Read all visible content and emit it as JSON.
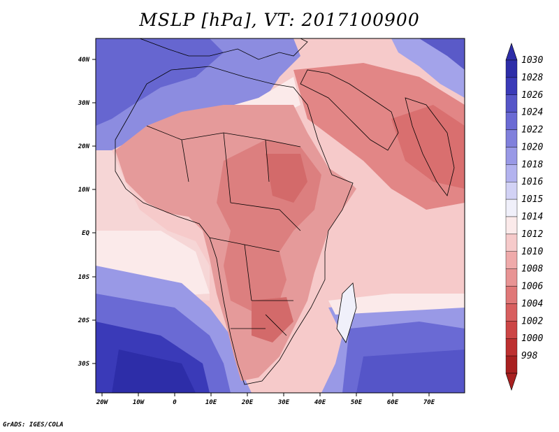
{
  "title": "MSLP [hPa], VT: 2017100900",
  "credit": "GrADS: IGES/COLA",
  "x_ticks": [
    "20W",
    "10W",
    "0",
    "10E",
    "20E",
    "30E",
    "40E",
    "50E",
    "60E",
    "70E"
  ],
  "y_ticks": [
    "40N",
    "30N",
    "20N",
    "10N",
    "EQ",
    "10S",
    "20S",
    "30S"
  ],
  "colorbar": {
    "labels": [
      "1030",
      "1028",
      "1026",
      "1024",
      "1022",
      "1020",
      "1018",
      "1016",
      "1015",
      "1014",
      "1012",
      "1010",
      "1008",
      "1006",
      "1004",
      "1002",
      "1000",
      "998"
    ],
    "colors": [
      "#2d2da8",
      "#3a3ab8",
      "#5555c8",
      "#6a6ad4",
      "#8080dc",
      "#9999e6",
      "#b3b3ef",
      "#d2d2f5",
      "#f0f0fa",
      "#fbeaea",
      "#f6caca",
      "#efaaaa",
      "#e89494",
      "#e07878",
      "#d85f5f",
      "#cc4545",
      "#bd3030",
      "#a82020"
    ]
  },
  "map_regions": {
    "ocean_high_south": "#3333b0",
    "land_low": "#e28686"
  }
}
